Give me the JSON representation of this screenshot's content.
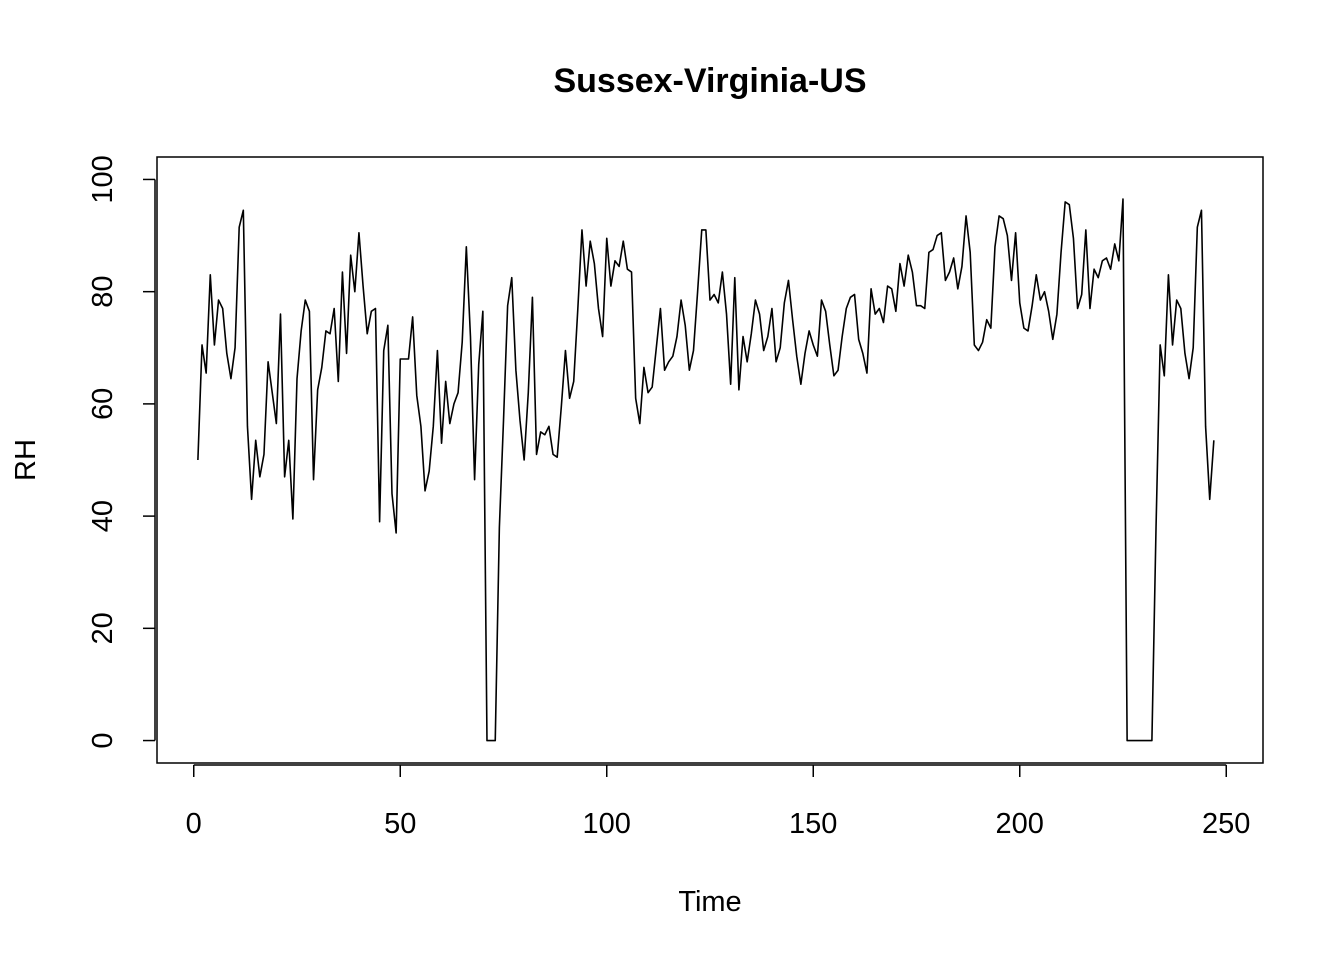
{
  "chart_data": {
    "type": "line",
    "title": "Sussex-Virginia-US",
    "xlabel": "Time",
    "ylabel": "RH",
    "xlim": [
      -8.9,
      258.9
    ],
    "ylim": [
      -4,
      104
    ],
    "xticks": [
      0,
      50,
      100,
      150,
      200,
      250
    ],
    "yticks": [
      0,
      20,
      40,
      60,
      80,
      100
    ],
    "grid": false,
    "legend": "none",
    "line_color": "#000000",
    "series": [
      {
        "values": [
          50.0,
          70.5,
          65.5,
          83.0,
          70.5,
          78.5,
          77.0,
          69.0,
          64.5,
          70.0,
          91.5,
          94.5,
          56.0,
          43.0,
          53.5,
          47.0,
          51.0,
          67.5,
          62.0,
          56.5,
          76.0,
          47.0,
          53.5,
          39.5,
          64.5,
          73.0,
          78.5,
          76.5,
          46.5,
          62.5,
          66.5,
          73.0,
          72.5,
          77.0,
          64.0,
          83.5,
          69.0,
          86.5,
          80.0,
          90.5,
          81.0,
          72.5,
          76.5,
          77.0,
          39.0,
          69.5,
          74.0,
          44.0,
          37.0,
          68.0,
          68.0,
          68.0,
          75.5,
          61.5,
          56.0,
          44.5,
          48.0,
          56.0,
          69.5,
          53.0,
          64.0,
          56.5,
          60.0,
          62.0,
          71.0,
          88.0,
          72.0,
          46.5,
          67.0,
          76.5,
          0.0,
          0.0,
          0.0,
          38.0,
          57.0,
          77.5,
          82.5,
          66.0,
          57.0,
          50.0,
          62.0,
          79.0,
          51.0,
          55.0,
          54.5,
          56.0,
          51.0,
          50.5,
          59.5,
          69.5,
          61.0,
          64.0,
          77.0,
          91.0,
          81.0,
          89.0,
          85.0,
          77.0,
          72.0,
          89.5,
          81.0,
          85.5,
          84.5,
          89.0,
          84.0,
          83.5,
          61.0,
          56.5,
          66.5,
          62.0,
          63.0,
          70.0,
          77.0,
          66.0,
          67.5,
          68.5,
          72.0,
          78.5,
          74.0,
          66.0,
          69.5,
          80.0,
          91.0,
          91.0,
          78.5,
          79.5,
          78.0,
          83.5,
          76.0,
          63.5,
          82.5,
          62.5,
          72.0,
          67.5,
          72.5,
          78.5,
          76.0,
          69.5,
          72.0,
          77.0,
          67.5,
          70.0,
          78.0,
          82.0,
          75.0,
          68.5,
          63.5,
          69.0,
          73.0,
          70.5,
          68.5,
          78.5,
          76.5,
          70.5,
          65.0,
          66.0,
          72.0,
          77.0,
          79.0,
          79.5,
          71.5,
          69.0,
          65.5,
          80.5,
          76.0,
          77.0,
          74.5,
          81.0,
          80.5,
          76.5,
          85.0,
          81.0,
          86.5,
          83.5,
          77.5,
          77.5,
          77.0,
          87.0,
          87.5,
          90.0,
          90.5,
          82.0,
          83.5,
          86.0,
          80.5,
          84.5,
          93.5,
          87.0,
          70.5,
          69.5,
          71.0,
          75.0,
          73.5,
          88.0,
          93.5,
          93.0,
          90.0,
          82.0,
          90.5,
          78.0,
          73.5,
          73.0,
          77.5,
          83.0,
          78.5,
          80.0,
          76.5,
          71.5,
          76.0,
          87.0,
          96.0,
          95.5,
          89.5,
          77.0,
          79.5,
          91.0,
          77.0,
          84.0,
          82.5,
          85.5,
          86.0,
          84.0,
          88.5,
          85.5,
          96.5,
          0.0,
          0.0,
          0.0,
          0.0,
          0.0,
          0.0,
          0.0,
          38.0,
          70.5,
          65.0,
          83.0,
          70.5,
          78.5,
          77.0,
          69.0,
          64.5,
          70.0,
          91.5,
          94.5,
          56.0,
          43.0,
          53.5
        ]
      }
    ]
  }
}
